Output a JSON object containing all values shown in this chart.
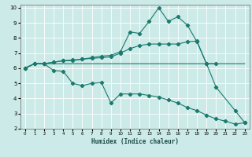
{
  "xlabel": "Humidex (Indice chaleur)",
  "bg_color": "#cceae7",
  "grid_color": "#ffffff",
  "line_color": "#1a7a6e",
  "xlim": [
    -0.5,
    23.5
  ],
  "ylim": [
    2,
    10.2
  ],
  "xticks": [
    0,
    1,
    2,
    3,
    4,
    5,
    6,
    7,
    8,
    9,
    10,
    11,
    12,
    13,
    14,
    15,
    16,
    17,
    18,
    19,
    20,
    21,
    22,
    23
  ],
  "yticks": [
    2,
    3,
    4,
    5,
    6,
    7,
    8,
    9,
    10
  ],
  "line1_x": [
    0,
    1,
    2,
    3,
    4,
    5,
    6,
    7,
    8,
    9,
    10,
    11,
    12,
    13,
    14,
    15,
    16,
    17,
    18,
    19,
    20,
    21,
    22,
    23
  ],
  "line1_y": [
    6.0,
    6.3,
    6.3,
    6.3,
    6.3,
    6.3,
    6.3,
    6.3,
    6.3,
    6.3,
    6.3,
    6.3,
    6.3,
    6.3,
    6.3,
    6.3,
    6.3,
    6.3,
    6.3,
    6.3,
    6.3,
    6.3,
    6.3,
    6.3
  ],
  "line2_x": [
    0,
    1,
    2,
    3,
    4,
    5,
    6,
    7,
    8,
    9,
    10,
    11,
    12,
    13,
    14,
    15,
    16,
    17,
    18,
    19,
    20
  ],
  "line2_y": [
    6.0,
    6.3,
    6.3,
    6.4,
    6.5,
    6.5,
    6.6,
    6.65,
    6.7,
    6.75,
    7.0,
    7.3,
    7.5,
    7.6,
    7.6,
    7.6,
    7.6,
    7.75,
    7.8,
    6.3,
    6.3
  ],
  "line3_x": [
    0,
    1,
    2,
    3,
    4,
    5,
    6,
    7,
    8,
    9,
    10,
    11,
    12,
    13,
    14,
    15,
    16,
    17,
    18,
    19,
    20,
    21,
    22,
    23
  ],
  "line3_y": [
    6.0,
    6.3,
    6.3,
    5.85,
    5.8,
    5.0,
    4.85,
    5.0,
    5.05,
    3.7,
    4.3,
    4.3,
    4.3,
    4.2,
    4.1,
    3.9,
    3.7,
    3.4,
    3.2,
    2.9,
    2.65,
    2.5,
    2.3,
    2.4
  ],
  "line4_x": [
    0,
    1,
    2,
    3,
    4,
    5,
    6,
    7,
    8,
    9,
    10,
    11,
    12,
    13,
    14,
    15,
    16,
    17,
    18,
    19,
    20,
    21,
    22,
    23
  ],
  "line4_y": [
    6.0,
    6.3,
    6.3,
    6.4,
    6.5,
    6.55,
    6.6,
    6.7,
    6.8,
    6.85,
    7.1,
    8.4,
    8.3,
    9.1,
    10.0,
    9.1,
    9.4,
    8.85,
    7.75,
    6.3,
    4.75,
    null,
    3.2,
    2.4
  ]
}
